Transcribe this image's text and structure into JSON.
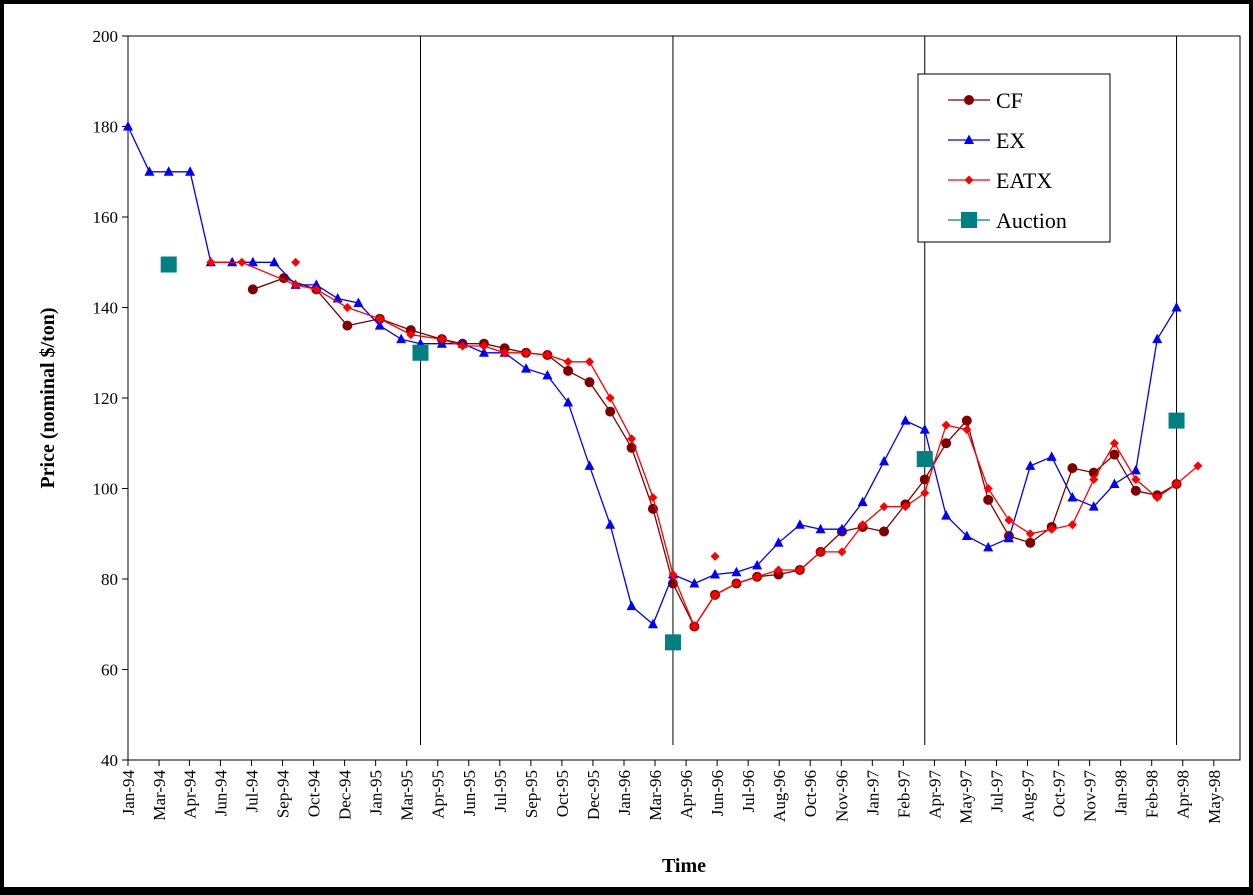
{
  "chart_data": {
    "type": "line",
    "title": "",
    "xlabel": "Time",
    "ylabel": "Price (nominal $/ton)",
    "ylim": [
      40,
      200
    ],
    "yticks": [
      40,
      60,
      80,
      100,
      120,
      140,
      160,
      180,
      200
    ],
    "xlim": [
      "1994-01-01",
      "1998-06-01"
    ],
    "grid": false,
    "legend_position": "top-right",
    "x_tick_labels": [
      "Jan-94",
      "Mar-94",
      "Apr-94",
      "Jun-94",
      "Jul-94",
      "Sep-94",
      "Oct-94",
      "Dec-94",
      "Jan-95",
      "Mar-95",
      "Apr-95",
      "Jun-95",
      "Jul-95",
      "Sep-95",
      "Oct-95",
      "Dec-95",
      "Jan-96",
      "Mar-96",
      "Apr-96",
      "Jun-96",
      "Jul-96",
      "Aug-96",
      "Oct-96",
      "Nov-96",
      "Jan-97",
      "Feb-97",
      "Apr-97",
      "May-97",
      "Jul-97",
      "Aug-97",
      "Oct-97",
      "Nov-97",
      "Jan-98",
      "Feb-98",
      "Apr-98",
      "May-98"
    ],
    "x_tick_dates": [
      "1994-01-01",
      "1994-02-15",
      "1994-03-31",
      "1994-05-15",
      "1994-06-29",
      "1994-08-13",
      "1994-09-27",
      "1994-11-11",
      "1994-12-26",
      "1995-02-09",
      "1995-03-26",
      "1995-05-10",
      "1995-06-24",
      "1995-08-08",
      "1995-09-22",
      "1995-11-06",
      "1995-12-21",
      "1996-02-04",
      "1996-03-20",
      "1996-05-04",
      "1996-06-18",
      "1996-08-02",
      "1996-09-16",
      "1996-10-31",
      "1996-12-15",
      "1997-01-29",
      "1997-03-15",
      "1997-04-29",
      "1997-06-13",
      "1997-07-28",
      "1997-09-11",
      "1997-10-26",
      "1997-12-10",
      "1998-01-24",
      "1998-03-10",
      "1998-04-24"
    ],
    "vertical_lines": [
      "1995-03-01",
      "1996-03-01",
      "1997-03-01",
      "1998-03-01"
    ],
    "series": [
      {
        "name": "CF",
        "color": "#800000",
        "marker": "circle",
        "points": [
          [
            "1994-07-01",
            144
          ],
          [
            "1994-08-15",
            146.5
          ],
          [
            "1994-10-01",
            144
          ],
          [
            "1994-11-15",
            136
          ],
          [
            "1995-01-01",
            137.5
          ],
          [
            "1995-02-15",
            135
          ],
          [
            "1995-04-01",
            133
          ],
          [
            "1995-05-01",
            132
          ],
          [
            "1995-06-01",
            132
          ],
          [
            "1995-07-01",
            131
          ],
          [
            "1995-08-01",
            130
          ],
          [
            "1995-09-01",
            129.5
          ],
          [
            "1995-10-01",
            126
          ],
          [
            "1995-11-01",
            123.5
          ],
          [
            "1995-12-01",
            117
          ],
          [
            "1996-01-01",
            109
          ],
          [
            "1996-02-01",
            95.5
          ],
          [
            "1996-03-01",
            79
          ],
          [
            "1996-04-01",
            69.5
          ],
          [
            "1996-05-01",
            76.5
          ],
          [
            "1996-06-01",
            79
          ],
          [
            "1996-07-01",
            80.5
          ],
          [
            "1996-08-01",
            81
          ],
          [
            "1996-09-01",
            82
          ],
          [
            "1996-10-01",
            86
          ],
          [
            "1996-11-01",
            90.5
          ],
          [
            "1996-12-01",
            91.5
          ],
          [
            "1997-01-01",
            90.5
          ],
          [
            "1997-02-01",
            96.5
          ],
          [
            "1997-03-01",
            102
          ],
          [
            "1997-04-01",
            110
          ],
          [
            "1997-05-01",
            115
          ],
          [
            "1997-06-01",
            97.5
          ],
          [
            "1997-07-01",
            89.5
          ],
          [
            "1997-08-01",
            88
          ],
          [
            "1997-09-01",
            91.5
          ],
          [
            "1997-10-01",
            104.5
          ],
          [
            "1997-11-01",
            103.5
          ],
          [
            "1997-12-01",
            107.5
          ],
          [
            "1998-01-01",
            99.5
          ],
          [
            "1998-02-01",
            98.5
          ],
          [
            "1998-03-01",
            101
          ]
        ]
      },
      {
        "name": "EX",
        "color": "#0000FF",
        "marker": "triangle",
        "points": [
          [
            "1994-01-01",
            180
          ],
          [
            "1994-02-01",
            170
          ],
          [
            "1994-03-01",
            170
          ],
          [
            "1994-04-01",
            170
          ],
          [
            "1994-05-01",
            150
          ],
          [
            "1994-06-01",
            150
          ],
          [
            "1994-07-01",
            150
          ],
          [
            "1994-08-01",
            150
          ],
          [
            "1994-09-01",
            145
          ],
          [
            "1994-10-01",
            145
          ],
          [
            "1994-11-01",
            142
          ],
          [
            "1994-12-01",
            141
          ],
          [
            "1995-01-01",
            136
          ],
          [
            "1995-02-01",
            133
          ],
          [
            "1995-03-01",
            132
          ],
          [
            "1995-04-01",
            132
          ],
          [
            "1995-05-01",
            132
          ],
          [
            "1995-06-01",
            130
          ],
          [
            "1995-07-01",
            130
          ],
          [
            "1995-08-01",
            126.5
          ],
          [
            "1995-09-01",
            125
          ],
          [
            "1995-10-01",
            119
          ],
          [
            "1995-11-01",
            105
          ],
          [
            "1995-12-01",
            92
          ],
          [
            "1996-01-01",
            74
          ],
          [
            "1996-02-01",
            70
          ],
          [
            "1996-03-01",
            81
          ],
          [
            "1996-04-01",
            79
          ],
          [
            "1996-05-01",
            81
          ],
          [
            "1996-06-01",
            81.5
          ],
          [
            "1996-07-01",
            83
          ],
          [
            "1996-08-01",
            88
          ],
          [
            "1996-09-01",
            92
          ],
          [
            "1996-10-01",
            91
          ],
          [
            "1996-11-01",
            91
          ],
          [
            "1996-12-01",
            97
          ],
          [
            "1997-01-01",
            106
          ],
          [
            "1997-02-01",
            115
          ],
          [
            "1997-03-01",
            113
          ],
          [
            "1997-04-01",
            94
          ],
          [
            "1997-05-01",
            89.5
          ],
          [
            "1997-06-01",
            87
          ],
          [
            "1997-07-01",
            89
          ],
          [
            "1997-08-01",
            105
          ],
          [
            "1997-09-01",
            107
          ],
          [
            "1997-10-01",
            98
          ],
          [
            "1997-11-01",
            96
          ],
          [
            "1997-12-01",
            101
          ],
          [
            "1998-01-01",
            104
          ],
          [
            "1998-02-01",
            133
          ],
          [
            "1998-03-01",
            140
          ]
        ]
      },
      {
        "name": "EATX",
        "color": "#FF0000",
        "marker": "diamond",
        "points": [
          [
            "1994-05-01",
            150
          ],
          [
            "1994-06-15",
            150
          ],
          [
            "1994-09-01",
            145
          ],
          [
            "1994-10-01",
            144
          ],
          [
            "1994-11-15",
            140
          ],
          [
            "1995-01-01",
            137.5
          ],
          [
            "1995-02-15",
            134
          ],
          [
            "1995-04-01",
            133
          ],
          [
            "1995-05-01",
            131.5
          ],
          [
            "1995-06-01",
            131.5
          ],
          [
            "1995-07-01",
            130
          ],
          [
            "1995-08-01",
            130
          ],
          [
            "1995-09-01",
            129.5
          ],
          [
            "1995-10-01",
            128
          ],
          [
            "1995-11-01",
            128
          ],
          [
            "1995-12-01",
            120
          ],
          [
            "1996-01-01",
            111
          ],
          [
            "1996-02-01",
            98
          ],
          [
            "1996-03-01",
            81
          ],
          [
            "1996-04-01",
            69.5
          ],
          [
            "1996-05-01",
            76.5
          ],
          [
            "1996-06-01",
            79
          ],
          [
            "1996-07-01",
            80.5
          ],
          [
            "1996-08-01",
            82
          ],
          [
            "1996-09-01",
            82
          ],
          [
            "1996-10-01",
            86
          ],
          [
            "1996-11-01",
            86
          ],
          [
            "1996-12-01",
            92
          ],
          [
            "1997-01-01",
            96
          ],
          [
            "1997-02-01",
            96
          ],
          [
            "1997-03-01",
            99
          ],
          [
            "1997-04-01",
            114
          ],
          [
            "1997-05-01",
            113
          ],
          [
            "1997-06-01",
            100
          ],
          [
            "1997-07-01",
            93
          ],
          [
            "1997-08-01",
            90
          ],
          [
            "1997-09-01",
            91
          ],
          [
            "1997-10-01",
            92
          ],
          [
            "1997-11-01",
            102
          ],
          [
            "1997-12-01",
            110
          ],
          [
            "1998-01-01",
            102
          ],
          [
            "1998-02-01",
            98
          ],
          [
            "1998-03-01",
            101
          ],
          [
            "1998-04-01",
            105
          ]
        ],
        "isolated_points": [
          [
            "1994-09-01",
            150
          ],
          [
            "1996-05-01",
            85
          ]
        ]
      },
      {
        "name": "Auction",
        "color": "#008080",
        "marker": "square",
        "line": false,
        "points": [
          [
            "1994-03-01",
            149.5
          ],
          [
            "1995-03-01",
            130
          ],
          [
            "1996-03-01",
            66
          ],
          [
            "1997-03-01",
            106.5
          ],
          [
            "1998-03-01",
            115
          ]
        ]
      }
    ]
  }
}
